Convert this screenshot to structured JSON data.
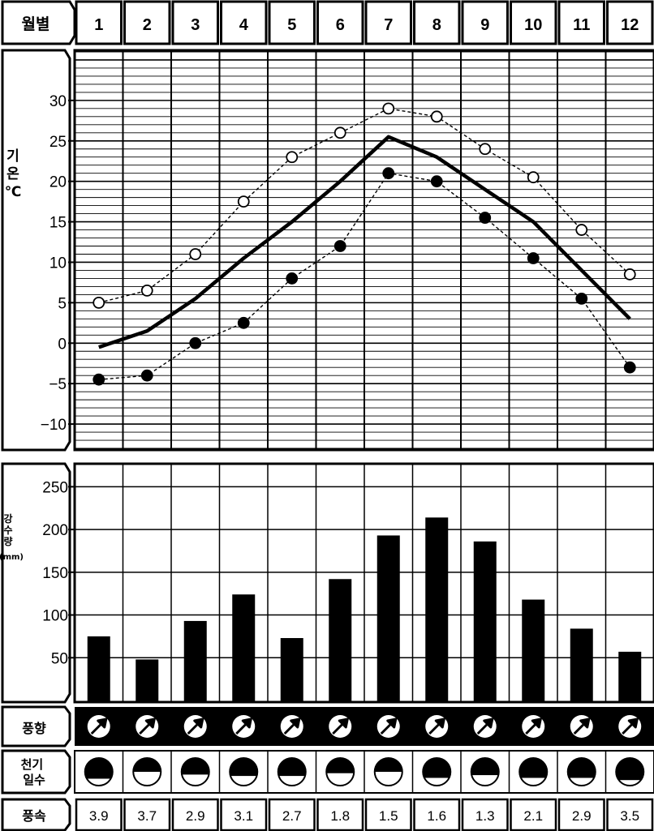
{
  "header": {
    "label": "월별"
  },
  "rows": {
    "wind_direction_label": "풍향",
    "clear_days_label": "천기\n일수",
    "wind_speed_label": "풍속"
  },
  "colors": {
    "ink": "#000000",
    "paper": "#ffffff"
  },
  "chart_data": [
    {
      "type": "line",
      "title": "",
      "ylabel": "기온 ℃",
      "x": [
        "1",
        "2",
        "3",
        "4",
        "5",
        "6",
        "7",
        "8",
        "9",
        "10",
        "11",
        "12"
      ],
      "ylim": [
        -13,
        36
      ],
      "yticks": [
        30,
        25,
        20,
        15,
        10,
        5,
        0,
        -5,
        -10
      ],
      "ytick_labels": [
        "30",
        "25",
        "20",
        "15",
        "10",
        "5",
        "0",
        "−5",
        "−10"
      ],
      "grid": true,
      "series": [
        {
          "name": "",
          "style": "open-circle-dashed",
          "values": [
            5.0,
            6.5,
            11.0,
            17.5,
            23.0,
            26.0,
            29.0,
            28.0,
            24.0,
            20.5,
            14.0,
            8.5
          ]
        },
        {
          "name": "",
          "style": "thick-solid",
          "values": [
            -0.5,
            1.5,
            5.5,
            10.5,
            15.0,
            20.0,
            25.5,
            23.0,
            19.0,
            15.0,
            9.0,
            3.0
          ]
        },
        {
          "name": "",
          "style": "filled-circle-dashed",
          "values": [
            -4.5,
            -4.0,
            0.0,
            2.5,
            8.0,
            12.0,
            21.0,
            20.0,
            15.5,
            10.5,
            5.5,
            -3.0
          ]
        }
      ]
    },
    {
      "type": "bar",
      "title": "",
      "ylabel": "강수량 (mm)",
      "categories": [
        "1",
        "2",
        "3",
        "4",
        "5",
        "6",
        "7",
        "8",
        "9",
        "10",
        "11",
        "12"
      ],
      "values": [
        75,
        48,
        93,
        124,
        73,
        142,
        193,
        214,
        186,
        118,
        84,
        57
      ],
      "ylim": [
        0,
        275
      ],
      "yticks": [
        250,
        200,
        150,
        100,
        50
      ],
      "ytick_labels": [
        "250",
        "200",
        "150",
        "100",
        "50"
      ],
      "grid": true
    },
    {
      "type": "table",
      "rows": [
        {
          "label": "풍향",
          "values": [
            "NE",
            "NE",
            "NE",
            "NE",
            "NE",
            "NE",
            "NE",
            "NE",
            "NE",
            "NE",
            "NE",
            "NE"
          ]
        },
        {
          "label": "천기일수",
          "values": [
            0.75,
            0.5,
            0.6,
            0.65,
            0.65,
            0.55,
            0.5,
            0.72,
            0.62,
            0.72,
            0.72,
            0.8
          ]
        },
        {
          "label": "풍속",
          "values": [
            "3.9",
            "3.7",
            "2.9",
            "3.1",
            "2.7",
            "1.8",
            "1.5",
            "1.6",
            "1.3",
            "2.1",
            "2.9",
            "3.5"
          ]
        }
      ]
    }
  ]
}
